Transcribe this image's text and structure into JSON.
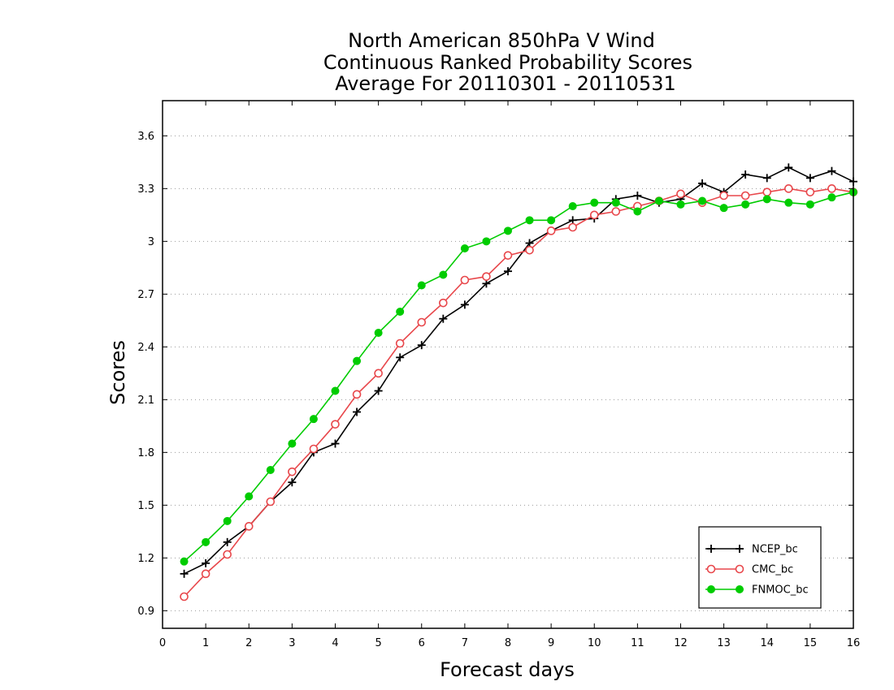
{
  "chart_data": {
    "type": "line",
    "title": [
      "North American 850hPa V Wind",
      "Continuous Ranked Probability Scores",
      "Average For 20110301 - 20110531"
    ],
    "xlabel": "Forecast days",
    "ylabel": "Scores",
    "xlim": [
      0,
      16
    ],
    "ylim": [
      0.8,
      3.8
    ],
    "xticks": [
      0,
      1,
      2,
      3,
      4,
      5,
      6,
      7,
      8,
      9,
      10,
      11,
      12,
      13,
      14,
      15,
      16
    ],
    "yticks": [
      0.9,
      1.2,
      1.5,
      1.8,
      2.1,
      2.4,
      2.7,
      3,
      3.3,
      3.6
    ],
    "ytick_labels": [
      "0.9",
      "1.2",
      "1.5",
      "1.8",
      "2.1",
      "2.4",
      "2.7",
      "3",
      "3.3",
      "3.6"
    ],
    "grid": "horizontal dotted",
    "legend_position": "bottom-right",
    "x": [
      0.5,
      1,
      1.5,
      2,
      2.5,
      3,
      3.5,
      4,
      4.5,
      5,
      5.5,
      6,
      6.5,
      7,
      7.5,
      8,
      8.5,
      9,
      9.5,
      10,
      10.5,
      11,
      11.5,
      12,
      12.5,
      13,
      13.5,
      14,
      14.5,
      15,
      15.5,
      16
    ],
    "series": [
      {
        "name": "NCEP_bc",
        "color": "#000000",
        "marker": "plus",
        "values": [
          1.11,
          1.17,
          1.29,
          1.38,
          1.52,
          1.63,
          1.8,
          1.85,
          2.03,
          2.15,
          2.34,
          2.41,
          2.56,
          2.64,
          2.76,
          2.83,
          2.99,
          3.06,
          3.12,
          3.13,
          3.24,
          3.26,
          3.22,
          3.24,
          3.33,
          3.28,
          3.38,
          3.36,
          3.42,
          3.36,
          3.4,
          3.34
        ]
      },
      {
        "name": "CMC_bc",
        "color": "#e8474b",
        "marker": "open-circle",
        "values": [
          0.98,
          1.11,
          1.22,
          1.38,
          1.52,
          1.69,
          1.82,
          1.96,
          2.13,
          2.25,
          2.42,
          2.54,
          2.65,
          2.78,
          2.8,
          2.92,
          2.95,
          3.06,
          3.08,
          3.15,
          3.17,
          3.2,
          3.23,
          3.27,
          3.22,
          3.26,
          3.26,
          3.28,
          3.3,
          3.28,
          3.3,
          3.28
        ]
      },
      {
        "name": "FNMOC_bc",
        "color": "#00cc00",
        "marker": "filled-circle",
        "values": [
          1.18,
          1.29,
          1.41,
          1.55,
          1.7,
          1.85,
          1.99,
          2.15,
          2.32,
          2.48,
          2.6,
          2.75,
          2.81,
          2.96,
          3.0,
          3.06,
          3.12,
          3.12,
          3.2,
          3.22,
          3.22,
          3.17,
          3.23,
          3.21,
          3.23,
          3.19,
          3.21,
          3.24,
          3.22,
          3.21,
          3.25,
          3.28
        ]
      }
    ]
  }
}
